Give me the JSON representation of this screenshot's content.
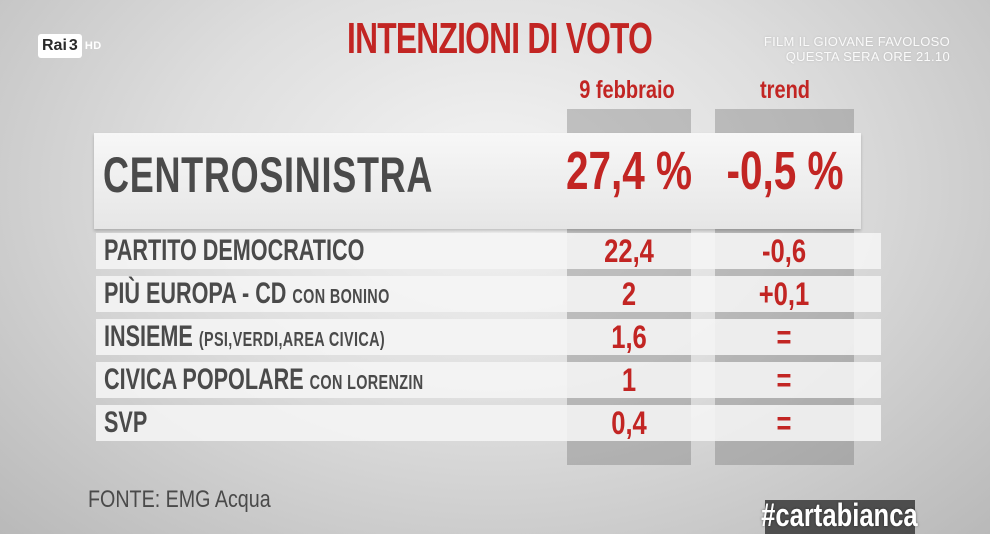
{
  "channel": {
    "logo_text": "Rai",
    "logo_number": "3",
    "logo_suffix": "HD"
  },
  "promo": {
    "line1": "FILM IL GIOVANE FAVOLOSO",
    "line2": "QUESTA SERA ORE 21.10"
  },
  "title": "INTENZIONI DI VOTO",
  "columns": {
    "date": "9 febbraio",
    "trend": "trend"
  },
  "main": {
    "label": "CENTROSINISTRA",
    "value": "27,4 %",
    "trend": "-0,5 %"
  },
  "rows": [
    {
      "label": "PARTITO DEMOCRATICO",
      "sublabel": "",
      "value": "22,4",
      "trend": "-0,6"
    },
    {
      "label": "PIÙ EUROPA - CD",
      "sublabel": "CON BONINO",
      "value": "2",
      "trend": "+0,1"
    },
    {
      "label": "INSIEME",
      "sublabel": "(PSI,VERDI,AREA CIVICA)",
      "value": "1,6",
      "trend": "="
    },
    {
      "label": "CIVICA POPOLARE",
      "sublabel": "CON LORENZIN",
      "value": "1",
      "trend": "="
    },
    {
      "label": "SVP",
      "sublabel": "",
      "value": "0,4",
      "trend": "="
    }
  ],
  "source": "FONTE: EMG Acqua",
  "hashtag": "#cartabianca",
  "colors": {
    "accent": "#c22523",
    "text": "#4a4a4a"
  }
}
